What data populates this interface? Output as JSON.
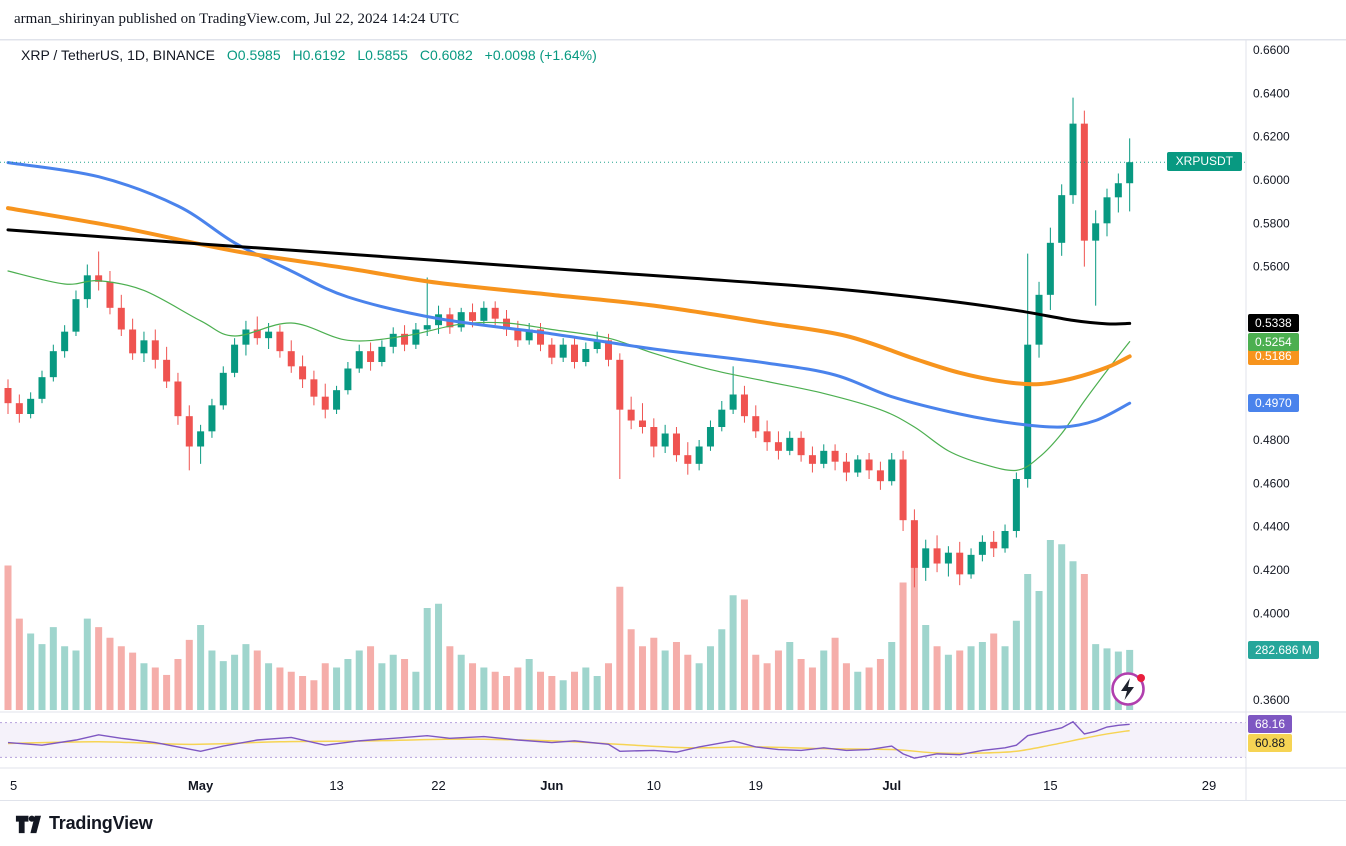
{
  "header": {
    "attribution": "arman_shirinyan published on TradingView.com, Jul 22, 2024 14:24 UTC"
  },
  "legend": {
    "symbol": "XRP / TetherUS, 1D, BINANCE",
    "open": "O0.5985",
    "high": "H0.6192",
    "low": "L0.5855",
    "close": "C0.6082",
    "change": "+0.0098 (+1.64%)"
  },
  "footer": {
    "brand": "TradingView"
  },
  "colors": {
    "up": "#089981",
    "down": "#ef5350",
    "vol_up": "#9fd5cd",
    "vol_down": "#f5aeaa",
    "price_line": "#089981",
    "symbol_badge_bg": "#089981",
    "volume_badge_bg": "#26a69a",
    "axis_text": "#131722",
    "separator": "#e0e3eb",
    "rsi_line": "#7e57c2",
    "rsi_ma_line": "#f6d454",
    "rsi_band_fill": "#7e57c2"
  },
  "chart_data": {
    "type": "candlestick",
    "symbol_badge": "XRPUSDT",
    "interval": "1D",
    "exchange": "BINANCE",
    "last_price": 0.6082,
    "price_axis": {
      "range": [
        0.3554,
        0.6646
      ],
      "visible_ticks": [
        "0.6600",
        "0.6400",
        "0.6200",
        "0.6000",
        "0.5800",
        "0.5600",
        "0.4800",
        "0.4600",
        "0.4400",
        "0.4200",
        "0.4000",
        "0.3600"
      ]
    },
    "time_axis": {
      "ticks": [
        {
          "label": "5",
          "day": 0.5,
          "bold": false
        },
        {
          "label": "May",
          "day": 17,
          "bold": true
        },
        {
          "label": "13",
          "day": 29,
          "bold": false
        },
        {
          "label": "22",
          "day": 38,
          "bold": false
        },
        {
          "label": "Jun",
          "day": 48,
          "bold": true
        },
        {
          "label": "10",
          "day": 57,
          "bold": false
        },
        {
          "label": "19",
          "day": 66,
          "bold": false
        },
        {
          "label": "Jul",
          "day": 78,
          "bold": true
        },
        {
          "label": "15",
          "day": 92,
          "bold": false
        },
        {
          "label": "29",
          "day": 106,
          "bold": false
        }
      ]
    },
    "candles": [
      [
        0.504,
        0.508,
        0.492,
        0.497,
        680
      ],
      [
        0.497,
        0.501,
        0.488,
        0.492,
        430
      ],
      [
        0.492,
        0.502,
        0.49,
        0.499,
        360
      ],
      [
        0.499,
        0.512,
        0.497,
        0.509,
        310
      ],
      [
        0.509,
        0.524,
        0.507,
        0.521,
        390
      ],
      [
        0.521,
        0.533,
        0.518,
        0.53,
        300
      ],
      [
        0.53,
        0.549,
        0.528,
        0.545,
        280
      ],
      [
        0.545,
        0.561,
        0.541,
        0.556,
        430
      ],
      [
        0.556,
        0.567,
        0.549,
        0.553,
        390
      ],
      [
        0.553,
        0.558,
        0.538,
        0.541,
        340
      ],
      [
        0.541,
        0.547,
        0.528,
        0.531,
        300
      ],
      [
        0.531,
        0.536,
        0.517,
        0.52,
        270
      ],
      [
        0.52,
        0.53,
        0.516,
        0.526,
        220
      ],
      [
        0.526,
        0.531,
        0.513,
        0.517,
        200
      ],
      [
        0.517,
        0.523,
        0.504,
        0.507,
        165
      ],
      [
        0.507,
        0.511,
        0.487,
        0.491,
        240
      ],
      [
        0.491,
        0.496,
        0.466,
        0.477,
        330
      ],
      [
        0.477,
        0.487,
        0.469,
        0.484,
        400
      ],
      [
        0.484,
        0.499,
        0.481,
        0.496,
        280
      ],
      [
        0.496,
        0.514,
        0.494,
        0.511,
        230
      ],
      [
        0.511,
        0.527,
        0.509,
        0.524,
        260
      ],
      [
        0.524,
        0.535,
        0.519,
        0.531,
        310
      ],
      [
        0.531,
        0.537,
        0.524,
        0.527,
        280
      ],
      [
        0.527,
        0.534,
        0.522,
        0.53,
        220
      ],
      [
        0.53,
        0.533,
        0.518,
        0.521,
        200
      ],
      [
        0.521,
        0.526,
        0.511,
        0.514,
        180
      ],
      [
        0.514,
        0.519,
        0.504,
        0.508,
        160
      ],
      [
        0.508,
        0.512,
        0.496,
        0.5,
        140
      ],
      [
        0.5,
        0.506,
        0.49,
        0.494,
        220
      ],
      [
        0.494,
        0.505,
        0.492,
        0.503,
        200
      ],
      [
        0.503,
        0.516,
        0.501,
        0.513,
        240
      ],
      [
        0.513,
        0.524,
        0.511,
        0.521,
        280
      ],
      [
        0.521,
        0.525,
        0.512,
        0.516,
        300
      ],
      [
        0.516,
        0.526,
        0.514,
        0.523,
        220
      ],
      [
        0.523,
        0.532,
        0.52,
        0.529,
        260
      ],
      [
        0.529,
        0.533,
        0.521,
        0.524,
        240
      ],
      [
        0.524,
        0.534,
        0.522,
        0.531,
        180
      ],
      [
        0.531,
        0.555,
        0.528,
        0.533,
        480
      ],
      [
        0.533,
        0.542,
        0.529,
        0.538,
        500
      ],
      [
        0.538,
        0.541,
        0.529,
        0.532,
        300
      ],
      [
        0.532,
        0.541,
        0.53,
        0.539,
        260
      ],
      [
        0.539,
        0.543,
        0.532,
        0.535,
        220
      ],
      [
        0.535,
        0.544,
        0.533,
        0.541,
        200
      ],
      [
        0.541,
        0.544,
        0.533,
        0.536,
        180
      ],
      [
        0.536,
        0.54,
        0.528,
        0.531,
        160
      ],
      [
        0.531,
        0.535,
        0.523,
        0.526,
        200
      ],
      [
        0.526,
        0.534,
        0.524,
        0.531,
        240
      ],
      [
        0.531,
        0.534,
        0.521,
        0.524,
        180
      ],
      [
        0.524,
        0.527,
        0.515,
        0.518,
        160
      ],
      [
        0.518,
        0.527,
        0.516,
        0.524,
        140
      ],
      [
        0.524,
        0.527,
        0.513,
        0.516,
        180
      ],
      [
        0.516,
        0.525,
        0.514,
        0.522,
        200
      ],
      [
        0.522,
        0.53,
        0.52,
        0.526,
        160
      ],
      [
        0.526,
        0.529,
        0.514,
        0.517,
        220
      ],
      [
        0.517,
        0.52,
        0.462,
        0.494,
        580
      ],
      [
        0.494,
        0.5,
        0.485,
        0.489,
        380
      ],
      [
        0.489,
        0.497,
        0.483,
        0.486,
        300
      ],
      [
        0.486,
        0.49,
        0.472,
        0.477,
        340
      ],
      [
        0.477,
        0.487,
        0.474,
        0.483,
        280
      ],
      [
        0.483,
        0.486,
        0.47,
        0.473,
        320
      ],
      [
        0.473,
        0.479,
        0.464,
        0.469,
        260
      ],
      [
        0.469,
        0.48,
        0.466,
        0.477,
        220
      ],
      [
        0.477,
        0.489,
        0.475,
        0.486,
        300
      ],
      [
        0.486,
        0.498,
        0.484,
        0.494,
        380
      ],
      [
        0.494,
        0.514,
        0.492,
        0.501,
        540
      ],
      [
        0.501,
        0.505,
        0.488,
        0.491,
        520
      ],
      [
        0.491,
        0.496,
        0.481,
        0.484,
        260
      ],
      [
        0.484,
        0.489,
        0.475,
        0.479,
        220
      ],
      [
        0.479,
        0.484,
        0.471,
        0.475,
        280
      ],
      [
        0.475,
        0.484,
        0.473,
        0.481,
        320
      ],
      [
        0.481,
        0.484,
        0.47,
        0.473,
        240
      ],
      [
        0.473,
        0.477,
        0.465,
        0.469,
        200
      ],
      [
        0.469,
        0.478,
        0.467,
        0.475,
        280
      ],
      [
        0.475,
        0.478,
        0.466,
        0.47,
        340
      ],
      [
        0.47,
        0.474,
        0.461,
        0.465,
        220
      ],
      [
        0.465,
        0.473,
        0.463,
        0.471,
        180
      ],
      [
        0.471,
        0.474,
        0.462,
        0.466,
        200
      ],
      [
        0.466,
        0.47,
        0.457,
        0.461,
        240
      ],
      [
        0.461,
        0.474,
        0.459,
        0.471,
        320
      ],
      [
        0.471,
        0.475,
        0.438,
        0.443,
        600
      ],
      [
        0.443,
        0.448,
        0.412,
        0.421,
        680
      ],
      [
        0.421,
        0.434,
        0.415,
        0.43,
        400
      ],
      [
        0.43,
        0.436,
        0.419,
        0.423,
        300
      ],
      [
        0.423,
        0.431,
        0.417,
        0.428,
        260
      ],
      [
        0.428,
        0.433,
        0.413,
        0.418,
        280
      ],
      [
        0.418,
        0.43,
        0.416,
        0.427,
        300
      ],
      [
        0.427,
        0.436,
        0.424,
        0.433,
        320
      ],
      [
        0.433,
        0.438,
        0.426,
        0.43,
        360
      ],
      [
        0.43,
        0.441,
        0.428,
        0.438,
        300
      ],
      [
        0.438,
        0.465,
        0.435,
        0.462,
        420
      ],
      [
        0.462,
        0.566,
        0.458,
        0.524,
        640
      ],
      [
        0.524,
        0.553,
        0.518,
        0.547,
        560
      ],
      [
        0.547,
        0.578,
        0.54,
        0.571,
        800
      ],
      [
        0.571,
        0.598,
        0.565,
        0.593,
        780
      ],
      [
        0.593,
        0.638,
        0.589,
        0.626,
        700
      ],
      [
        0.626,
        0.632,
        0.56,
        0.572,
        640
      ],
      [
        0.572,
        0.586,
        0.542,
        0.58,
        310
      ],
      [
        0.58,
        0.596,
        0.574,
        0.592,
        290
      ],
      [
        0.592,
        0.603,
        0.585,
        0.5985,
        275
      ],
      [
        0.5985,
        0.6192,
        0.5855,
        0.6082,
        282.686
      ]
    ],
    "volume_label": "282.686 M",
    "overlays": [
      {
        "name": "ema-21",
        "color": "#4caf50",
        "width": 1.2,
        "label": "0.5254",
        "points": [
          [
            0,
            0.558
          ],
          [
            5,
            0.552
          ],
          [
            8,
            0.5535
          ],
          [
            12,
            0.549
          ],
          [
            17,
            0.535
          ],
          [
            20,
            0.528
          ],
          [
            25,
            0.534
          ],
          [
            30,
            0.526
          ],
          [
            35,
            0.528
          ],
          [
            40,
            0.5335
          ],
          [
            44,
            0.534
          ],
          [
            48,
            0.531
          ],
          [
            53,
            0.527
          ],
          [
            57,
            0.52
          ],
          [
            62,
            0.5125
          ],
          [
            67,
            0.507
          ],
          [
            72,
            0.5015
          ],
          [
            77,
            0.494
          ],
          [
            80,
            0.486
          ],
          [
            83,
            0.475
          ],
          [
            86,
            0.469
          ],
          [
            89,
            0.466
          ],
          [
            91,
            0.472
          ],
          [
            93,
            0.483
          ],
          [
            95,
            0.498
          ],
          [
            97,
            0.512
          ],
          [
            99,
            0.5254
          ]
        ]
      },
      {
        "name": "ma-50",
        "color": "#4a83ec",
        "width": 3,
        "label": "0.4970",
        "points": [
          [
            0,
            0.608
          ],
          [
            8,
            0.6015
          ],
          [
            15,
            0.588
          ],
          [
            20,
            0.571
          ],
          [
            25,
            0.558
          ],
          [
            30,
            0.546
          ],
          [
            38,
            0.536
          ],
          [
            48,
            0.529
          ],
          [
            57,
            0.522
          ],
          [
            67,
            0.5155
          ],
          [
            73,
            0.51
          ],
          [
            78,
            0.5
          ],
          [
            84,
            0.492
          ],
          [
            89,
            0.4875
          ],
          [
            93,
            0.486
          ],
          [
            96,
            0.489
          ],
          [
            99,
            0.497
          ]
        ]
      },
      {
        "name": "ma-100",
        "color": "#f7941d",
        "width": 4,
        "label": "0.5186",
        "points": [
          [
            0,
            0.587
          ],
          [
            10,
            0.578
          ],
          [
            20,
            0.5672
          ],
          [
            30,
            0.5592
          ],
          [
            38,
            0.5525
          ],
          [
            48,
            0.547
          ],
          [
            57,
            0.542
          ],
          [
            67,
            0.534
          ],
          [
            74,
            0.528
          ],
          [
            80,
            0.5175
          ],
          [
            84,
            0.511
          ],
          [
            88,
            0.5068
          ],
          [
            91,
            0.5058
          ],
          [
            94,
            0.5085
          ],
          [
            97,
            0.5135
          ],
          [
            99,
            0.5186
          ]
        ]
      },
      {
        "name": "ma-200",
        "color": "#000000",
        "width": 3,
        "label": "0.5338",
        "points": [
          [
            0,
            0.577
          ],
          [
            15,
            0.5712
          ],
          [
            30,
            0.5658
          ],
          [
            45,
            0.5602
          ],
          [
            60,
            0.5548
          ],
          [
            72,
            0.5502
          ],
          [
            82,
            0.5448
          ],
          [
            89,
            0.5398
          ],
          [
            94,
            0.5352
          ],
          [
            97,
            0.5336
          ],
          [
            99,
            0.5338
          ]
        ]
      }
    ],
    "rsi": {
      "upper": 70,
      "lower": 30,
      "value_label": "68.16",
      "ma_label": "60.88",
      "line": [
        [
          0,
          47
        ],
        [
          3,
          44
        ],
        [
          6,
          50
        ],
        [
          8,
          56
        ],
        [
          10,
          52
        ],
        [
          13,
          47
        ],
        [
          15,
          42
        ],
        [
          17,
          37
        ],
        [
          19,
          43
        ],
        [
          22,
          50
        ],
        [
          25,
          53
        ],
        [
          28,
          44
        ],
        [
          31,
          49
        ],
        [
          34,
          52
        ],
        [
          37,
          55
        ],
        [
          39,
          52
        ],
        [
          42,
          54
        ],
        [
          45,
          50
        ],
        [
          48,
          47
        ],
        [
          50,
          49
        ],
        [
          53,
          45
        ],
        [
          54,
          37
        ],
        [
          57,
          38
        ],
        [
          59,
          36
        ],
        [
          61,
          42
        ],
        [
          64,
          49
        ],
        [
          66,
          42
        ],
        [
          68,
          39
        ],
        [
          70,
          38
        ],
        [
          72,
          41
        ],
        [
          74,
          38
        ],
        [
          76,
          39
        ],
        [
          78,
          43
        ],
        [
          79,
          34
        ],
        [
          80,
          29
        ],
        [
          82,
          34
        ],
        [
          84,
          33
        ],
        [
          86,
          38
        ],
        [
          88,
          41
        ],
        [
          89,
          44
        ],
        [
          90,
          55
        ],
        [
          91,
          58
        ],
        [
          92,
          61
        ],
        [
          93,
          64
        ],
        [
          94,
          71
        ],
        [
          95,
          57
        ],
        [
          96,
          60
        ],
        [
          97,
          65
        ],
        [
          98,
          67
        ],
        [
          99,
          68.16
        ]
      ],
      "ma_line": [
        [
          0,
          46
        ],
        [
          8,
          48
        ],
        [
          16,
          45
        ],
        [
          24,
          48
        ],
        [
          32,
          49
        ],
        [
          40,
          51
        ],
        [
          48,
          49
        ],
        [
          54,
          45
        ],
        [
          60,
          41
        ],
        [
          66,
          42
        ],
        [
          72,
          40
        ],
        [
          78,
          39
        ],
        [
          82,
          35
        ],
        [
          86,
          35
        ],
        [
          89,
          37
        ],
        [
          92,
          44
        ],
        [
          95,
          52
        ],
        [
          97,
          57
        ],
        [
          99,
          60.88
        ]
      ]
    }
  }
}
